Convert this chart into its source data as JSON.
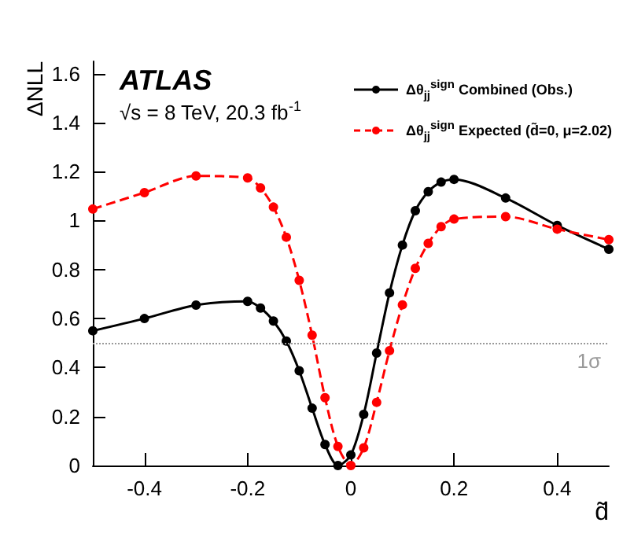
{
  "chart_data": {
    "type": "line",
    "xlabel": "d̃",
    "ylabel": "ΔNLL",
    "annotations": [
      "ATLAS",
      "√s = 8 TeV, 20.3 fb$^{-1}$"
    ],
    "x": [
      -0.5,
      -0.4,
      -0.3,
      -0.2,
      -0.175,
      -0.15,
      -0.125,
      -0.1,
      -0.075,
      -0.05,
      -0.025,
      0,
      0.025,
      0.05,
      0.075,
      0.1,
      0.125,
      0.15,
      0.175,
      0.2,
      0.3,
      0.4,
      0.5
    ],
    "series": [
      {
        "name": "Δθ$_{jj}$$^{sign}$ Combined (Obs.)",
        "color": "#000000",
        "line_style": "solid",
        "values": [
          0.55,
          0.6,
          0.655,
          0.67,
          0.643,
          0.59,
          0.508,
          0.387,
          0.234,
          0.086,
          0,
          0.043,
          0.209,
          0.459,
          0.705,
          0.9,
          1.04,
          1.118,
          1.157,
          1.168,
          1.092,
          0.98,
          0.883
        ]
      },
      {
        "name": "Δθ$_{jj}$$^{sign}$ Expected (d̃=0, μ=2.02)",
        "color": "#ff0000",
        "line_style": "dashed",
        "values": [
          1.047,
          1.114,
          1.182,
          1.174,
          1.133,
          1.055,
          0.932,
          0.756,
          0.532,
          0.277,
          0.078,
          0,
          0.072,
          0.258,
          0.469,
          0.656,
          0.805,
          0.907,
          0.975,
          1.006,
          1.016,
          0.965,
          0.922
        ]
      }
    ],
    "xlim": [
      -0.5,
      0.5
    ],
    "xticks": [
      -0.4,
      -0.2,
      0,
      0.2,
      0.4
    ],
    "ylim": [
      0,
      1.65
    ],
    "yticks": [
      0,
      0.2,
      0.4,
      0.6,
      0.8,
      1,
      1.2,
      1.4,
      1.6
    ],
    "ref_lines": [
      {
        "axis": "y",
        "value": 0.5,
        "label": "1σ",
        "color": "#999999",
        "line_style": "dotted"
      }
    ],
    "marker": "circle",
    "grid": false,
    "legend": "top right"
  }
}
